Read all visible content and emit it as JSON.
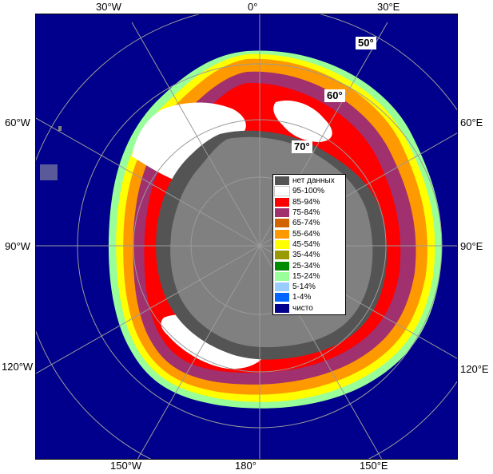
{
  "colors": {
    "open_ocean": "#00008c",
    "land": "#808080",
    "antarctica": "#808080",
    "graticule": "#9a9a9a"
  },
  "longitude_labels": {
    "top": [
      "30°W",
      "0°",
      "30°E"
    ],
    "left": [
      "60°W",
      "90°W",
      "120°W"
    ],
    "right": [
      "60°E",
      "90°E",
      "120°E"
    ],
    "bottom": [
      "150°W",
      "180°",
      "150°E"
    ]
  },
  "latitude_labels": [
    "50°",
    "60°",
    "70°"
  ],
  "legend": [
    {
      "label": "нет данных",
      "color": "#545454"
    },
    {
      "label": "95-100%",
      "color": "#ffffff"
    },
    {
      "label": "85-94%",
      "color": "#ff0000"
    },
    {
      "label": "75-84%",
      "color": "#a0306e"
    },
    {
      "label": "65-74%",
      "color": "#d26400"
    },
    {
      "label": "55-64%",
      "color": "#ff9900"
    },
    {
      "label": "45-54%",
      "color": "#ffff00"
    },
    {
      "label": "35-44%",
      "color": "#999900"
    },
    {
      "label": "25-34%",
      "color": "#008c00"
    },
    {
      "label": "15-24%",
      "color": "#99ff99"
    },
    {
      "label": "5-14%",
      "color": "#99ccff"
    },
    {
      "label": "1-4%",
      "color": "#0066ff"
    },
    {
      "label": "чисто",
      "color": "#00008c"
    }
  ]
}
